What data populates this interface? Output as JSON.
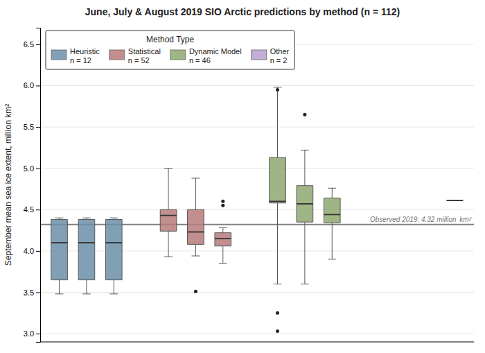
{
  "chart_data": {
    "type": "box",
    "title": "June, July & August 2019 SIO Arctic predictions by method (n = 112)",
    "y_label": "September mean sea ice extent, million km²",
    "ylim": [
      2.9,
      6.7
    ],
    "yticks": [
      {
        "value": 3.0,
        "label": "3.0"
      },
      3.5,
      {
        "value": 4.0,
        "label": "4.0"
      },
      4.5,
      {
        "value": 5.0,
        "label": "5.0"
      },
      5.5,
      {
        "value": 6.0,
        "label": "6.0"
      },
      6.5
    ],
    "grid": true,
    "tick_labels": "y",
    "legend": "upper left",
    "legend_title": "Method Type",
    "reference_line": {
      "value": 4.32,
      "label": "Observed 2019: 4.32 million  km²",
      "color": "#808080"
    },
    "series": [
      {
        "name": "Heuristic",
        "label": "n = 12",
        "color": "#6b8fa8",
        "boxes": [
          {
            "whisker_low": 3.48,
            "q1": 3.65,
            "median": 4.1,
            "q3": 4.38,
            "whisker_high": 4.4,
            "outliers": []
          },
          {
            "whisker_low": 3.48,
            "q1": 3.65,
            "median": 4.1,
            "q3": 4.38,
            "whisker_high": 4.4,
            "outliers": []
          },
          {
            "whisker_low": 3.48,
            "q1": 3.65,
            "median": 4.1,
            "q3": 4.38,
            "whisker_high": 4.4,
            "outliers": []
          }
        ]
      },
      {
        "name": "Statistical",
        "label": "n = 52",
        "color": "#b87a7a",
        "boxes": [
          {
            "whisker_low": 3.93,
            "q1": 4.24,
            "median": 4.43,
            "q3": 4.5,
            "whisker_high": 5.0,
            "outliers": []
          },
          {
            "whisker_low": 3.94,
            "q1": 4.08,
            "median": 4.23,
            "q3": 4.5,
            "whisker_high": 4.88,
            "outliers": [
              3.51
            ]
          },
          {
            "whisker_low": 3.85,
            "q1": 4.06,
            "median": 4.15,
            "q3": 4.22,
            "whisker_high": 4.28,
            "outliers": [
              4.55,
              4.6
            ]
          }
        ]
      },
      {
        "name": "Dynamic Model",
        "label": "n = 46",
        "color": "#8fa870",
        "boxes": [
          {
            "whisker_low": 3.6,
            "q1": 4.58,
            "median": 4.6,
            "q3": 5.13,
            "whisker_high": 5.98,
            "outliers": [
              5.95,
              3.25,
              3.03
            ]
          },
          {
            "whisker_low": 3.6,
            "q1": 4.35,
            "median": 4.57,
            "q3": 4.79,
            "whisker_high": 5.22,
            "outliers": [
              5.65
            ]
          },
          {
            "whisker_low": 3.9,
            "q1": 4.34,
            "median": 4.44,
            "q3": 4.64,
            "whisker_high": 4.76,
            "outliers": []
          }
        ]
      },
      {
        "name": "Other",
        "label": "n = 2",
        "color": "#b8a0d0",
        "boxes": [
          {
            "whisker_low": 4.61,
            "q1": 4.61,
            "median": 4.61,
            "q3": 4.61,
            "whisker_high": 4.61,
            "outliers": []
          }
        ]
      }
    ]
  }
}
